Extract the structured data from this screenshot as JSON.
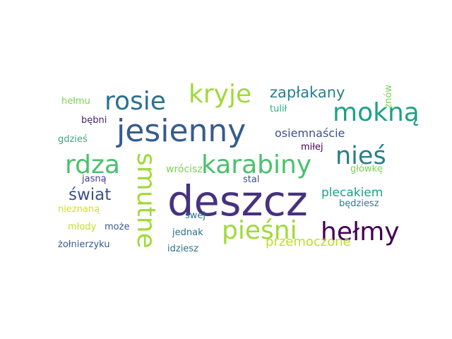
{
  "wordcloud": {
    "words": [
      {
        "key": "deszcz",
        "text": "deszcz",
        "color": "#46327e"
      },
      {
        "key": "jesienny",
        "text": "jesienny",
        "color": "#365c8d"
      },
      {
        "key": "kryje",
        "text": "kryje",
        "color": "#a0da39"
      },
      {
        "key": "rosie",
        "text": "rosie",
        "color": "#2c728e"
      },
      {
        "key": "mokna",
        "text": "mokną",
        "color": "#1fa187"
      },
      {
        "key": "rdza",
        "text": "rdza",
        "color": "#4ac16d"
      },
      {
        "key": "karabiny",
        "text": "karabiny",
        "color": "#4ac16d"
      },
      {
        "key": "nies",
        "text": "nieś",
        "color": "#277f8e"
      },
      {
        "key": "smutne",
        "text": "smutne",
        "color": "#a0da39"
      },
      {
        "key": "piesni",
        "text": "pieśni",
        "color": "#a0da39"
      },
      {
        "key": "helmy",
        "text": "hełmy",
        "color": "#440154"
      },
      {
        "key": "swiat",
        "text": "świat",
        "color": "#3b528b"
      },
      {
        "key": "zaplakany",
        "text": "zapłakany",
        "color": "#277f8e"
      },
      {
        "key": "przemoczone",
        "text": "przemoczone",
        "color": "#bddf26"
      },
      {
        "key": "plecakiem",
        "text": "plecakiem",
        "color": "#1fa187"
      },
      {
        "key": "osiemnascie",
        "text": "osiemnaście",
        "color": "#3b528b"
      },
      {
        "key": "wrocisz",
        "text": "wrócisz",
        "color": "#7ad151"
      },
      {
        "key": "bedziesz",
        "text": "będziesz",
        "color": "#277f8e"
      },
      {
        "key": "helmu",
        "text": "hełmu",
        "color": "#7ad151"
      },
      {
        "key": "tulil",
        "text": "tulił",
        "color": "#2fb47c"
      },
      {
        "key": "bebni",
        "text": "bębni",
        "color": "#482173"
      },
      {
        "key": "gdzies",
        "text": "gdzieś",
        "color": "#2fb47c"
      },
      {
        "key": "milej",
        "text": "miłej",
        "color": "#440154"
      },
      {
        "key": "glowke",
        "text": "główkę",
        "color": "#7ad151"
      },
      {
        "key": "jasna",
        "text": "jasną",
        "color": "#433e85"
      },
      {
        "key": "stal",
        "text": "stal",
        "color": "#3b528b"
      },
      {
        "key": "swej",
        "text": "swej",
        "color": "#2c728e"
      },
      {
        "key": "nieznana",
        "text": "nieznaną",
        "color": "#d2e21b"
      },
      {
        "key": "mlody",
        "text": "młody",
        "color": "#bddf26"
      },
      {
        "key": "moze",
        "text": "może",
        "color": "#38598c"
      },
      {
        "key": "jednak",
        "text": "jednak",
        "color": "#2c728e"
      },
      {
        "key": "zolnierzyku",
        "text": "żołnierzyku",
        "color": "#365c8d"
      },
      {
        "key": "idziesz",
        "text": "idziesz",
        "color": "#2c728e"
      },
      {
        "key": "znow",
        "text": "znów",
        "color": "#7ad151"
      }
    ]
  }
}
